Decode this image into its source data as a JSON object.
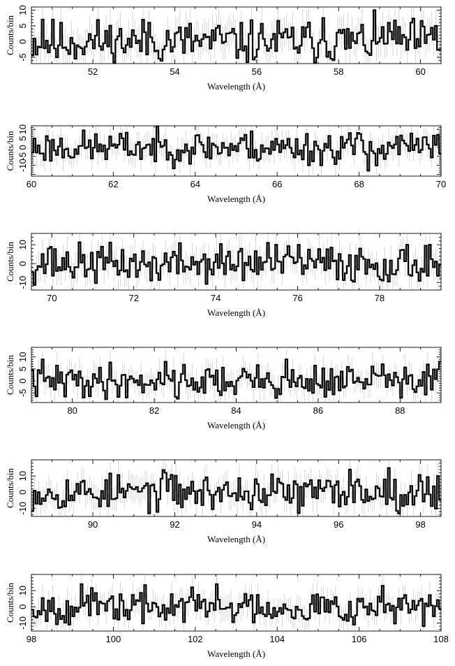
{
  "figure": {
    "xlabel": "Wavelength (Å)",
    "ylabel": "Counts/bin",
    "colors": {
      "step_line": "#000000",
      "error_bars": "#c4c4c4",
      "frame": "#000000"
    }
  },
  "chart_data": [
    {
      "type": "line",
      "style": "step-with-error-bars",
      "xlim": [
        50.5,
        60.5
      ],
      "ylim": [
        -7,
        11
      ],
      "xticks": [
        52,
        54,
        56,
        58,
        60
      ],
      "yticks": [
        -5,
        0,
        5,
        10
      ],
      "xlabel": "Wavelength (Å)",
      "ylabel": "Counts/bin",
      "bin_width": 0.05,
      "amplitude": 3.5,
      "seed": 11,
      "notable_bins": [
        {
          "x": 50.8,
          "y": 7
        },
        {
          "x": 51.1,
          "y": -5
        },
        {
          "x": 51.2,
          "y": 6
        },
        {
          "x": 53.4,
          "y": 6
        },
        {
          "x": 55.6,
          "y": 6
        },
        {
          "x": 57.6,
          "y": 7.5
        },
        {
          "x": 59.2,
          "y": 6
        },
        {
          "x": 60.4,
          "y": 5
        }
      ]
    },
    {
      "type": "line",
      "style": "step-with-error-bars",
      "xlim": [
        60,
        70
      ],
      "ylim": [
        -16,
        12
      ],
      "xticks": [
        60,
        62,
        64,
        66,
        68,
        70
      ],
      "yticks": [
        -10,
        -5,
        0,
        5,
        10
      ],
      "xlabel": "Wavelength (Å)",
      "ylabel": "Counts/bin",
      "bin_width": 0.05,
      "amplitude": 4.5,
      "seed": 23,
      "notable_bins": [
        {
          "x": 65.2,
          "y": 7
        },
        {
          "x": 67.1,
          "y": -10
        },
        {
          "x": 67.8,
          "y": 8
        },
        {
          "x": 68.2,
          "y": -13
        },
        {
          "x": 68.9,
          "y": 6
        },
        {
          "x": 69.9,
          "y": 7
        }
      ]
    },
    {
      "type": "line",
      "style": "step-with-error-bars",
      "xlim": [
        69.5,
        79.5
      ],
      "ylim": [
        -14,
        16
      ],
      "xticks": [
        70,
        72,
        74,
        76,
        78
      ],
      "yticks": [
        -10,
        0,
        10
      ],
      "xlabel": "Wavelength (Å)",
      "ylabel": "Counts/bin",
      "bin_width": 0.05,
      "amplitude": 5,
      "seed": 37,
      "notable_bins": [
        {
          "x": 69.9,
          "y": 8
        },
        {
          "x": 72.4,
          "y": -9
        },
        {
          "x": 75.3,
          "y": 11
        },
        {
          "x": 76.0,
          "y": 10
        },
        {
          "x": 78.1,
          "y": -9
        },
        {
          "x": 79.2,
          "y": 10
        }
      ]
    },
    {
      "type": "line",
      "style": "step-with-error-bars",
      "xlim": [
        79,
        89
      ],
      "ylim": [
        -9,
        14
      ],
      "xticks": [
        80,
        82,
        84,
        86,
        88
      ],
      "yticks": [
        -5,
        0,
        5,
        10
      ],
      "xlabel": "Wavelength (Å)",
      "ylabel": "Counts/bin",
      "bin_width": 0.05,
      "amplitude": 3.5,
      "seed": 41,
      "notable_bins": [
        {
          "x": 79.3,
          "y": 9
        },
        {
          "x": 82.3,
          "y": 8
        },
        {
          "x": 85.2,
          "y": 9
        },
        {
          "x": 87.6,
          "y": 7
        },
        {
          "x": 89.0,
          "y": 8
        }
      ]
    },
    {
      "type": "line",
      "style": "step-with-error-bars",
      "xlim": [
        88.5,
        98.5
      ],
      "ylim": [
        -15,
        20
      ],
      "xticks": [
        90,
        92,
        94,
        96,
        98
      ],
      "yticks": [
        -10,
        0,
        10
      ],
      "xlabel": "Wavelength (Å)",
      "ylabel": "Counts/bin",
      "bin_width": 0.05,
      "amplitude": 5.5,
      "seed": 53,
      "notable_bins": [
        {
          "x": 91.8,
          "y": 12
        },
        {
          "x": 95.0,
          "y": -13
        },
        {
          "x": 96.3,
          "y": 14
        },
        {
          "x": 97.2,
          "y": 15
        },
        {
          "x": 98.4,
          "y": 10
        }
      ]
    },
    {
      "type": "line",
      "style": "step-with-error-bars",
      "xlim": [
        98,
        108
      ],
      "ylim": [
        -15,
        20
      ],
      "xticks": [
        98,
        100,
        102,
        104,
        106,
        108
      ],
      "yticks": [
        -10,
        0,
        10
      ],
      "xlabel": "Wavelength (Å)",
      "ylabel": "Counts/bin",
      "bin_width": 0.05,
      "amplitude": 5,
      "seed": 67,
      "notable_bins": [
        {
          "x": 99.2,
          "y": 14
        },
        {
          "x": 101.9,
          "y": 12
        },
        {
          "x": 102.5,
          "y": 14
        },
        {
          "x": 106.6,
          "y": 13
        },
        {
          "x": 107.6,
          "y": -12
        }
      ]
    }
  ]
}
